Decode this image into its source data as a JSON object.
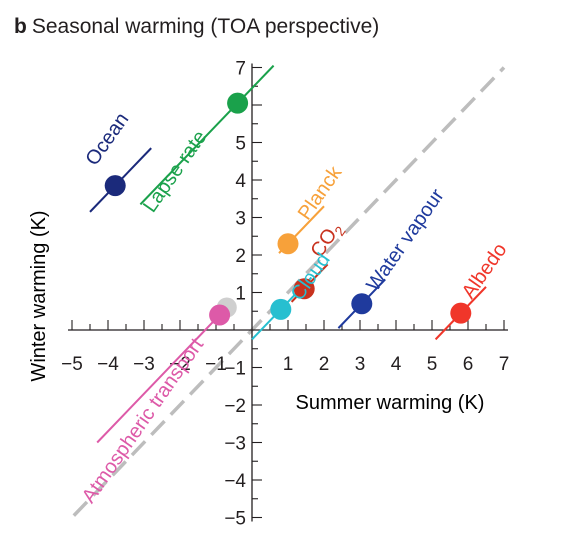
{
  "panel": {
    "letter": "b",
    "title": "Seasonal warming (TOA perspective)"
  },
  "colors": {
    "axis": "#231f20",
    "one_to_one": "#bdbdbd",
    "gray_dot": "#cfcfcf"
  },
  "chart_data": {
    "type": "scatter",
    "title": "Seasonal warming (TOA perspective)",
    "xlabel": "Summer warming (K)",
    "ylabel": "Winter warming (K)",
    "xlim": [
      -5,
      7
    ],
    "ylim": [
      -5,
      7
    ],
    "x_ticks": [
      -5,
      -4,
      -3,
      -2,
      -1,
      1,
      2,
      3,
      4,
      5,
      6,
      7
    ],
    "y_ticks": [
      -5,
      -4,
      -3,
      -2,
      -1,
      1,
      2,
      3,
      4,
      5,
      6,
      7
    ],
    "x_tick_labels": [
      "−5",
      "−4",
      "−3",
      "−2",
      "−1",
      "1",
      "2",
      "3",
      "4",
      "5",
      "6",
      "7"
    ],
    "y_tick_labels": [
      "−5",
      "−4",
      "−3",
      "−2",
      "−1",
      "1",
      "2",
      "3",
      "4",
      "5",
      "6",
      "7"
    ],
    "reference_line": {
      "style": "dashed",
      "x": [
        -5,
        7
      ],
      "y": [
        -5,
        7
      ]
    },
    "unlabeled_point": {
      "x": -0.7,
      "y": 0.6,
      "color": "#cfcfcf"
    },
    "points": [
      {
        "label": "Ocean",
        "x": -3.8,
        "y": 3.85,
        "color": "#1b2a7b",
        "line_x": [
          -4.5,
          -2.8
        ],
        "label_base": [
          -4.35,
          4.35
        ],
        "label_angle": -55
      },
      {
        "label": "Lapse rate",
        "x": -0.4,
        "y": 6.05,
        "color": "#1aa14b",
        "line_x": [
          -3.1,
          0.6
        ],
        "label_base": [
          -2.75,
          3.1
        ],
        "label_angle": -55
      },
      {
        "label": "Planck",
        "x": 1.0,
        "y": 2.3,
        "color": "#f7a13a",
        "line_x": [
          0.75,
          2.0
        ],
        "label_base": [
          1.55,
          2.9
        ],
        "label_angle": -55
      },
      {
        "label": "CO",
        "sub": "2",
        "x": 1.45,
        "y": 1.1,
        "color": "#c8321e",
        "line_x": [
          1.1,
          2.1
        ],
        "label_base": [
          1.9,
          1.9
        ],
        "label_angle": -55
      },
      {
        "label": "Cloud",
        "x": 0.8,
        "y": 0.55,
        "color": "#27bfd0",
        "line_x": [
          0.0,
          1.65
        ],
        "label_base": [
          1.35,
          0.75
        ],
        "label_angle": -55
      },
      {
        "label": "Water vapour",
        "x": 3.05,
        "y": 0.7,
        "color": "#1f3a9d",
        "line_x": [
          2.4,
          3.7
        ],
        "label_base": [
          3.45,
          1.0
        ],
        "label_angle": -55
      },
      {
        "label": "Albedo",
        "x": 5.8,
        "y": 0.45,
        "color": "#f0362a",
        "line_x": [
          5.1,
          6.5
        ],
        "label_base": [
          6.1,
          0.8
        ],
        "label_angle": -55
      },
      {
        "label": "Atmospheric transport",
        "x": -0.9,
        "y": 0.4,
        "color": "#dd5aa8",
        "line_x": [
          -4.3,
          -0.7
        ],
        "label_base": [
          -4.45,
          -4.65
        ],
        "label_angle": -55
      }
    ]
  }
}
